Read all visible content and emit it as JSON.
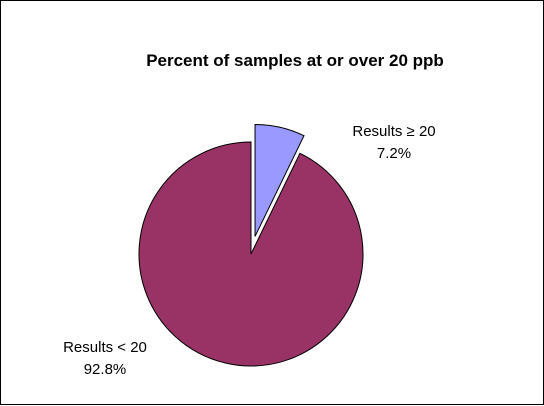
{
  "chart_data": {
    "type": "pie",
    "title": "Percent of samples at or over 20 ppb",
    "slices": [
      {
        "name": "Results ≥ 20",
        "value": 7.2,
        "value_label": "7.2%",
        "color": "#9999ff",
        "exploded": true
      },
      {
        "name": "Results < 20",
        "value": 92.8,
        "value_label": "92.8%",
        "color": "#993366",
        "exploded": false
      }
    ],
    "start_angle_deg": 0,
    "direction": "clockwise",
    "legend": "none",
    "border": true
  }
}
